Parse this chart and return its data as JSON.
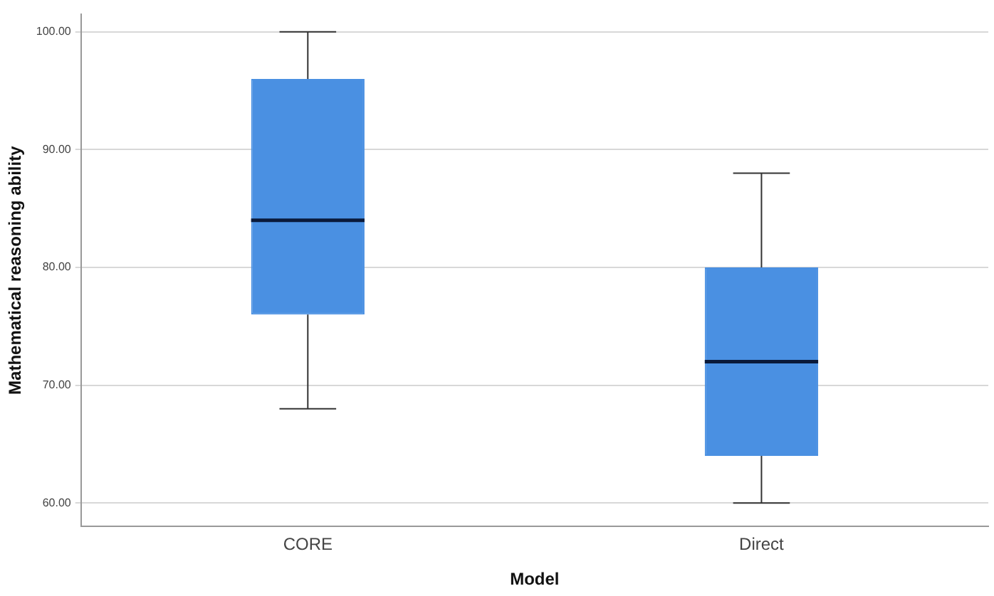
{
  "chart_data": {
    "type": "box",
    "xlabel": "Model",
    "ylabel": "Mathematical reasoning ability",
    "categories": [
      "CORE",
      "Direct"
    ],
    "boxes": [
      {
        "low": 68,
        "q1": 76,
        "median": 84,
        "q3": 96,
        "high": 100
      },
      {
        "low": 60,
        "q1": 64,
        "median": 72,
        "q3": 80,
        "high": 88
      }
    ],
    "color": "#4a90e2",
    "ylim": [
      58,
      101.5
    ],
    "yticks": [
      {
        "value": 60,
        "label": "60.00"
      },
      {
        "value": 70,
        "label": "70.00"
      },
      {
        "value": 80,
        "label": "80.00"
      },
      {
        "value": 90,
        "label": "90.00"
      },
      {
        "value": 100,
        "label": "100.00"
      }
    ],
    "grid": "y",
    "legend": false
  }
}
